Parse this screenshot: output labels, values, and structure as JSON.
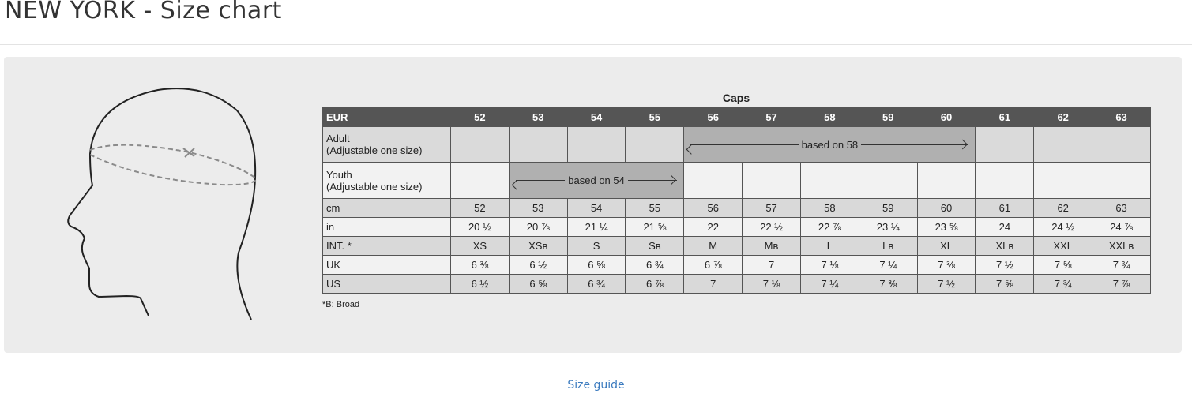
{
  "page": {
    "title": "NEW YORK - Size chart",
    "size_guide_link": "Size guide"
  },
  "chart": {
    "caption": "Caps",
    "header_label": "EUR",
    "eur": [
      "52",
      "53",
      "54",
      "55",
      "56",
      "57",
      "58",
      "59",
      "60",
      "61",
      "62",
      "63"
    ],
    "adult": {
      "label_line1": "Adult",
      "label_line2": "(Adjustable one size)",
      "merged_text": "based on 58",
      "merged_range": [
        "56",
        "60"
      ]
    },
    "youth": {
      "label_line1": "Youth",
      "label_line2": "(Adjustable one size)",
      "merged_text": "based on 54",
      "merged_range": [
        "53",
        "55"
      ]
    },
    "rows": [
      {
        "label": "cm",
        "values": [
          "52",
          "53",
          "54",
          "55",
          "56",
          "57",
          "58",
          "59",
          "60",
          "61",
          "62",
          "63"
        ]
      },
      {
        "label": "in",
        "values": [
          "20 ½",
          "20 ⅞",
          "21 ¼",
          "21 ⅝",
          "22",
          "22 ½",
          "22 ⅞",
          "23 ¼",
          "23 ⅝",
          "24",
          "24 ½",
          "24 ⅞"
        ]
      },
      {
        "label": "INT. *",
        "values": [
          "XS",
          "XSʙ",
          "S",
          "Sʙ",
          "M",
          "Mʙ",
          "L",
          "Lʙ",
          "XL",
          "XLʙ",
          "XXL",
          "XXLʙ"
        ]
      },
      {
        "label": "UK",
        "values": [
          "6 ⅜",
          "6 ½",
          "6 ⅝",
          "6 ¾",
          "6 ⅞",
          "7",
          "7 ⅛",
          "7 ¼",
          "7 ⅜",
          "7 ½",
          "7 ⅝",
          "7 ¾"
        ]
      },
      {
        "label": "US",
        "values": [
          "6 ½",
          "6 ⅝",
          "6 ¾",
          "6 ⅞",
          "7",
          "7 ⅛",
          "7 ¼",
          "7 ⅜",
          "7 ½",
          "7 ⅝",
          "7 ¾",
          "7 ⅞"
        ]
      }
    ],
    "footnote": "*B: Broad"
  },
  "colors": {
    "header_bg": "#555555",
    "merged_bg": "#b0b0b0",
    "panel_bg": "#ececec",
    "link": "#3b7bbf"
  }
}
